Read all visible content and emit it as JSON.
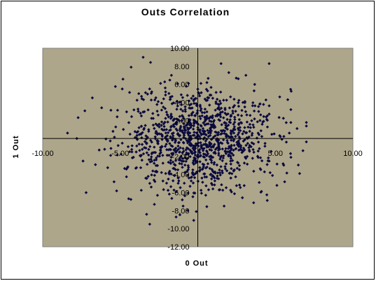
{
  "chart_data": {
    "type": "scatter",
    "title": "Outs Correlation",
    "xlabel": "0 Out",
    "ylabel": "1 Out",
    "xlim": [
      -10,
      10
    ],
    "ylim": [
      -12,
      10
    ],
    "x_ticks": [
      "-10.00",
      "-5.00",
      "5.00",
      "10.00"
    ],
    "y_ticks": [
      "10.00",
      "8.00",
      "6.00",
      "4.00",
      "2.00",
      "-2.00",
      "-4.00",
      "-6.00",
      "-8.00",
      "-10.00",
      "-12.00"
    ],
    "grid": false,
    "legend": "none",
    "colors": {
      "plot_area": "#AEA68A",
      "marker": "#0A0A3E",
      "axis": "#000000"
    },
    "series": [
      {
        "marker": "diamond",
        "points": [
          [
            -8.4,
            0.6
          ],
          [
            -7.8,
            0.0
          ],
          [
            -7.4,
            -2.5
          ],
          [
            -7.2,
            -6.0
          ],
          [
            -6.6,
            -2.9
          ],
          [
            -6.8,
            4.5
          ],
          [
            -6.2,
            3.4
          ],
          [
            -5.6,
            -1.1
          ],
          [
            -5.4,
            -4.8
          ],
          [
            -5.2,
            2.4
          ],
          [
            -4.6,
            -3.4
          ],
          [
            -4.8,
            1.0
          ],
          [
            -4.4,
            5.1
          ],
          [
            -4.3,
            7.9
          ],
          [
            -4.0,
            -3.3
          ],
          [
            -3.7,
            2.8
          ],
          [
            -3.6,
            4.4
          ],
          [
            -3.2,
            -4.2
          ],
          [
            -3.0,
            5.0
          ],
          [
            -2.6,
            -6.3
          ],
          [
            -2.9,
            -3.6
          ],
          [
            -2.4,
            6.1
          ],
          [
            -2.1,
            5.6
          ],
          [
            -3.3,
            -8.4
          ],
          [
            -3.1,
            -9.5
          ],
          [
            -2.8,
            -7.3
          ],
          [
            -1.4,
            -8.7
          ],
          [
            -1.0,
            -6.8
          ],
          [
            -0.1,
            -8.1
          ],
          [
            -1.7,
            7.0
          ],
          [
            -0.6,
            6.1
          ],
          [
            1.5,
            8.3
          ],
          [
            2.0,
            7.3
          ],
          [
            3.1,
            7.0
          ],
          [
            4.6,
            8.3
          ],
          [
            4.0,
            3.8
          ],
          [
            4.6,
            2.7
          ],
          [
            4.3,
            -3.7
          ],
          [
            4.6,
            -2.5
          ],
          [
            5.1,
            -5.2
          ],
          [
            5.6,
            -4.8
          ],
          [
            5.5,
            -2.8
          ],
          [
            5.9,
            0.6
          ],
          [
            6.0,
            3.2
          ],
          [
            6.4,
            1.1
          ],
          [
            5.8,
            4.3
          ],
          [
            -3.5,
            -1.7
          ],
          [
            -2.7,
            1.6
          ],
          [
            -1.3,
            3.6
          ],
          [
            -0.3,
            4.7
          ],
          [
            0.7,
            4.5
          ],
          [
            1.4,
            3.2
          ],
          [
            2.6,
            2.6
          ],
          [
            3.4,
            1.2
          ],
          [
            3.6,
            -0.6
          ],
          [
            3.1,
            -2.2
          ],
          [
            2.2,
            -3.9
          ],
          [
            1.1,
            -4.7
          ],
          [
            -0.5,
            -5.3
          ],
          [
            -1.9,
            -4.5
          ],
          [
            -2.6,
            -3.0
          ],
          [
            -3.3,
            -0.5
          ],
          [
            0.2,
            6.1
          ],
          [
            0.8,
            1.1
          ],
          [
            2.3,
            -1.3
          ],
          [
            -1.2,
            -2.4
          ]
        ]
      }
    ]
  }
}
